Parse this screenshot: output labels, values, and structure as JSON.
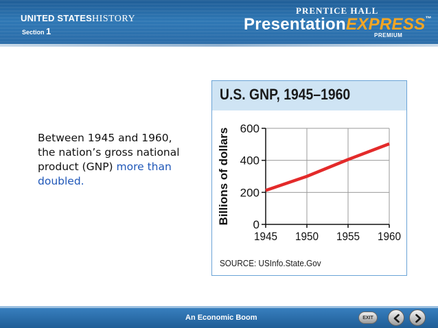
{
  "header": {
    "series_bold": "UNITED STATES",
    "series_thin": "HISTORY",
    "section_label": "Section",
    "section_number": "1",
    "publisher": "PRENTICE HALL",
    "product_main": "Presentation",
    "product_accent": "EXPRESS",
    "product_tm": "™",
    "tier": "PREMIUM"
  },
  "content": {
    "text_plain": "Between 1945 and 1960, the nation’s gross national product (GNP)",
    "text_highlight": "more than doubled."
  },
  "chart_data": {
    "type": "line",
    "title": "U.S. GNP, 1945–1960",
    "ylabel": "Billions of dollars",
    "xlabel": "",
    "source": "SOURCE: USInfo.State.Gov",
    "x": [
      1945,
      1950,
      1955,
      1960
    ],
    "xlim": [
      1945,
      1960
    ],
    "ylim": [
      0,
      600
    ],
    "x_ticks": [
      "1945",
      "1950",
      "1955",
      "1960"
    ],
    "y_ticks": [
      "0",
      "200",
      "400",
      "600"
    ],
    "series": [
      {
        "values": [
          212,
          300,
          405,
          503
        ],
        "color": "#e32a2a"
      }
    ],
    "grid": true,
    "colors": {
      "grid": "#9a9a9a",
      "axis": "#111111",
      "line": "#e32a2a",
      "title_bg": "#cfe4f4",
      "border": "#6aa3d6"
    }
  },
  "footer": {
    "title": "An Economic Boom",
    "exit_label": "EXIT",
    "prev_icon": "chevron-left-icon",
    "next_icon": "chevron-right-icon"
  }
}
